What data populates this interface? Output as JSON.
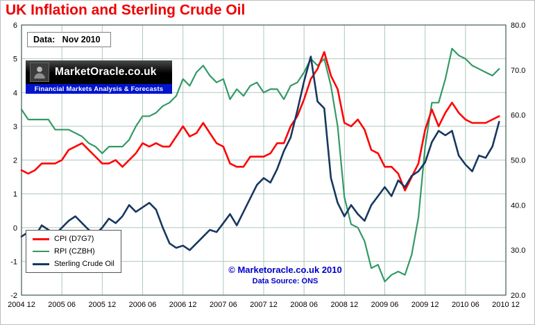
{
  "page": {
    "data_label": "Data:   Nov 2010",
    "logo": {
      "name": "MarketOracle.co.uk",
      "tagline": "Financial Markets Analysis & Forecasts"
    },
    "watermark": {
      "line1": "© Marketoracle.co.uk  2010",
      "line2": "Data Source: ONS"
    },
    "colors": {
      "title": "#ee0000",
      "watermark_blue": "#0000cc",
      "logo_blue": "#0014cc",
      "grid": "#aec8be",
      "plot_border": "#3c5a52",
      "tick_text": "#000000"
    }
  },
  "chart_data": {
    "type": "line",
    "title": "UK Inflation and Sterling Crude Oil",
    "xlabel": "",
    "ylabel_left": "",
    "ylabel_right": "",
    "grid": true,
    "legend_position": "bottom-left",
    "x": [
      "2004-12",
      "2005-01",
      "2005-02",
      "2005-03",
      "2005-04",
      "2005-05",
      "2005-06",
      "2005-07",
      "2005-08",
      "2005-09",
      "2005-10",
      "2005-11",
      "2005-12",
      "2006-01",
      "2006-02",
      "2006-03",
      "2006-04",
      "2006-05",
      "2006-06",
      "2006-07",
      "2006-08",
      "2006-09",
      "2006-10",
      "2006-11",
      "2006-12",
      "2007-01",
      "2007-02",
      "2007-03",
      "2007-04",
      "2007-05",
      "2007-06",
      "2007-07",
      "2007-08",
      "2007-09",
      "2007-10",
      "2007-11",
      "2007-12",
      "2008-01",
      "2008-02",
      "2008-03",
      "2008-04",
      "2008-05",
      "2008-06",
      "2008-07",
      "2008-08",
      "2008-09",
      "2008-10",
      "2008-11",
      "2008-12",
      "2009-01",
      "2009-02",
      "2009-03",
      "2009-04",
      "2009-05",
      "2009-06",
      "2009-07",
      "2009-08",
      "2009-09",
      "2009-10",
      "2009-11",
      "2009-12",
      "2010-01",
      "2010-02",
      "2010-03",
      "2010-04",
      "2010-05",
      "2010-06",
      "2010-07",
      "2010-08",
      "2010-09",
      "2010-10",
      "2010-11"
    ],
    "x_tick_labels": [
      "2004 12",
      "2005 06",
      "2005 12",
      "2006 06",
      "2006 12",
      "2007 06",
      "2007 12",
      "2008 06",
      "2008 12",
      "2009 06",
      "2009 12",
      "2010 06",
      "2010 12"
    ],
    "left_axis": {
      "min": -2,
      "max": 6,
      "ticks": [
        6,
        5,
        4,
        3,
        2,
        1,
        0,
        -1,
        -2
      ]
    },
    "right_axis": {
      "min": 20,
      "max": 80,
      "tick_labels": [
        "80.0",
        "70.0",
        "60.0",
        "50.0",
        "40.0",
        "30.0",
        "20.0"
      ]
    },
    "series": [
      {
        "name": "CPI (D7G7)",
        "axis": "left",
        "color": "#ff0000",
        "width": 2.6,
        "values": [
          1.7,
          1.6,
          1.7,
          1.9,
          1.9,
          1.9,
          2.0,
          2.3,
          2.4,
          2.5,
          2.3,
          2.1,
          1.9,
          1.9,
          2.0,
          1.8,
          2.0,
          2.2,
          2.5,
          2.4,
          2.5,
          2.4,
          2.4,
          2.7,
          3.0,
          2.7,
          2.8,
          3.1,
          2.8,
          2.5,
          2.4,
          1.9,
          1.8,
          1.8,
          2.1,
          2.1,
          2.1,
          2.2,
          2.5,
          2.5,
          3.0,
          3.3,
          3.8,
          4.4,
          4.7,
          5.2,
          4.5,
          4.1,
          3.1,
          3.0,
          3.2,
          2.9,
          2.3,
          2.2,
          1.8,
          1.8,
          1.6,
          1.1,
          1.5,
          1.9,
          2.9,
          3.5,
          3.0,
          3.4,
          3.7,
          3.4,
          3.2,
          3.1,
          3.1,
          3.1,
          3.2,
          3.3
        ]
      },
      {
        "name": "RPI (CZBH)",
        "axis": "left",
        "color": "#339966",
        "width": 2.2,
        "values": [
          3.5,
          3.2,
          3.2,
          3.2,
          3.2,
          2.9,
          2.9,
          2.9,
          2.8,
          2.7,
          2.5,
          2.4,
          2.2,
          2.4,
          2.4,
          2.4,
          2.6,
          3.0,
          3.3,
          3.3,
          3.4,
          3.6,
          3.7,
          3.9,
          4.4,
          4.2,
          4.6,
          4.8,
          4.5,
          4.3,
          4.4,
          3.8,
          4.1,
          3.9,
          4.2,
          4.3,
          4.0,
          4.1,
          4.1,
          3.8,
          4.2,
          4.3,
          4.6,
          5.0,
          4.8,
          5.0,
          4.2,
          3.0,
          0.9,
          0.1,
          0.0,
          -0.4,
          -1.2,
          -1.1,
          -1.6,
          -1.4,
          -1.3,
          -1.4,
          -0.8,
          0.3,
          2.4,
          3.7,
          3.7,
          4.4,
          5.3,
          5.1,
          5.0,
          4.8,
          4.7,
          4.6,
          4.5,
          4.7
        ]
      },
      {
        "name": "Sterling Crude Oil",
        "axis": "right",
        "color": "#17375e",
        "width": 2.6,
        "values": [
          33.0,
          34.0,
          33.0,
          35.5,
          34.5,
          33.5,
          35.0,
          36.5,
          37.5,
          36.0,
          34.5,
          33.5,
          35.0,
          37.0,
          36.0,
          37.5,
          40.0,
          38.5,
          39.5,
          40.5,
          39.0,
          35.0,
          31.5,
          30.5,
          31.0,
          30.0,
          31.5,
          33.0,
          34.5,
          34.0,
          36.0,
          38.0,
          35.5,
          38.5,
          41.5,
          44.5,
          46.0,
          45.0,
          48.0,
          52.0,
          55.0,
          61.0,
          67.5,
          73.0,
          63.0,
          61.5,
          46.0,
          40.5,
          37.5,
          40.0,
          38.0,
          36.5,
          40.0,
          42.0,
          44.0,
          42.0,
          45.5,
          44.0,
          46.5,
          47.5,
          49.5,
          54.0,
          56.5,
          55.5,
          56.5,
          51.0,
          49.0,
          47.5,
          51.0,
          50.5,
          53.0,
          58.5
        ]
      }
    ]
  }
}
